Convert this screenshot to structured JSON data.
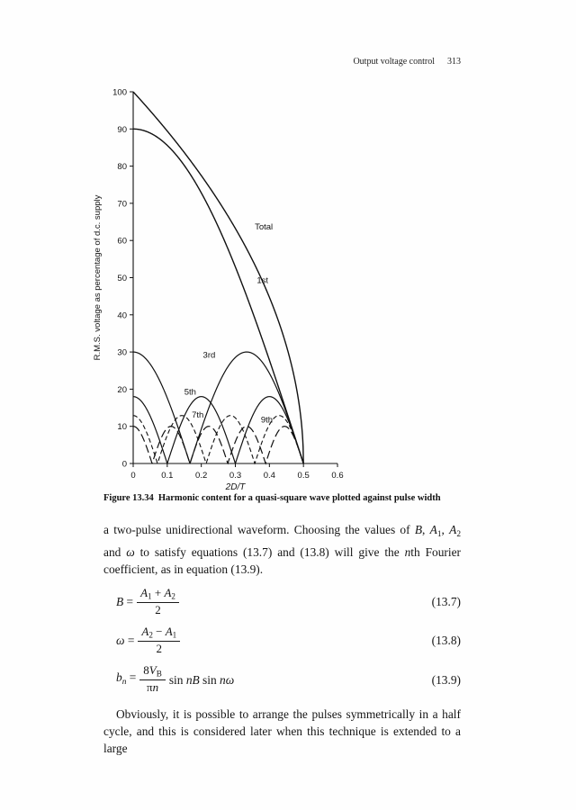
{
  "header": {
    "running_head": "Output voltage control",
    "page_number": "313"
  },
  "figure": {
    "caption_label": "Figure 13.34",
    "caption_text": "Harmonic content for a quasi-square wave plotted against pulse width"
  },
  "chart_data": {
    "type": "line",
    "title": "",
    "xlabel": "2D/T",
    "ylabel": "R.M.S. voltage as percentage of d.c. supply",
    "xlim": [
      0,
      0.6
    ],
    "ylim": [
      0,
      100
    ],
    "x_ticks": [
      "0",
      "0.1",
      "0.2",
      "0.3",
      "0.4",
      "0.5",
      "0.6"
    ],
    "y_ticks": [
      "0",
      "10",
      "20",
      "30",
      "40",
      "50",
      "60",
      "70",
      "80",
      "90",
      "100"
    ],
    "x_domain_end": 0.5,
    "grid": false,
    "legend_position": "inline-labels",
    "series": [
      {
        "name": "Total",
        "curve": "sqrt",
        "amplitude": 100,
        "dash": "",
        "width": 1.4,
        "label": "Total",
        "label_x": 0.357,
        "label_y": 63,
        "key_points": [
          [
            0,
            100
          ],
          [
            0.1,
            89.4
          ],
          [
            0.2,
            77.5
          ],
          [
            0.3,
            63.2
          ],
          [
            0.4,
            44.7
          ],
          [
            0.5,
            0
          ]
        ]
      },
      {
        "name": "1st",
        "curve": "cos",
        "harmonic": 1,
        "amplitude": 90,
        "dash": "",
        "width": 1.4,
        "label": "1st",
        "label_x": 0.363,
        "label_y": 48.5,
        "key_points": [
          [
            0,
            90
          ],
          [
            0.1,
            85.6
          ],
          [
            0.2,
            72.8
          ],
          [
            0.3,
            52.9
          ],
          [
            0.4,
            27.8
          ],
          [
            0.5,
            0
          ]
        ]
      },
      {
        "name": "3rd",
        "curve": "cos",
        "harmonic": 3,
        "amplitude": 30,
        "dash": "",
        "width": 1.2,
        "label": "3rd",
        "label_x": 0.205,
        "label_y": 28.5,
        "key_points": [
          [
            0,
            30
          ],
          [
            0.167,
            0
          ],
          [
            0.333,
            30
          ],
          [
            0.5,
            0
          ]
        ]
      },
      {
        "name": "5th",
        "curve": "cos",
        "harmonic": 5,
        "amplitude": 18,
        "dash": "",
        "width": 1.2,
        "label": "5th",
        "label_x": 0.15,
        "label_y": 18.5,
        "key_points": [
          [
            0,
            18
          ],
          [
            0.1,
            0
          ],
          [
            0.2,
            18
          ],
          [
            0.3,
            0
          ],
          [
            0.4,
            18
          ],
          [
            0.5,
            0
          ]
        ]
      },
      {
        "name": "7th",
        "curve": "cos",
        "harmonic": 7,
        "amplitude": 12.9,
        "dash": "5,3",
        "width": 1.1,
        "label": "7th",
        "label_x": 0.172,
        "label_y": 12.3,
        "key_points": [
          [
            0,
            12.9
          ],
          [
            0.071,
            0
          ],
          [
            0.143,
            12.9
          ],
          [
            0.214,
            0
          ],
          [
            0.286,
            12.9
          ],
          [
            0.357,
            0
          ],
          [
            0.429,
            12.9
          ],
          [
            0.5,
            0
          ]
        ]
      },
      {
        "name": "9th",
        "curve": "cos",
        "harmonic": 9,
        "amplitude": 10,
        "dash": "9,4",
        "width": 1.2,
        "label": "9th",
        "label_x": 0.375,
        "label_y": 11,
        "key_points": [
          [
            0,
            10
          ],
          [
            0.056,
            0
          ],
          [
            0.111,
            10
          ],
          [
            0.167,
            0
          ],
          [
            0.222,
            10
          ],
          [
            0.278,
            0
          ],
          [
            0.333,
            10
          ],
          [
            0.389,
            0
          ],
          [
            0.444,
            10
          ],
          [
            0.5,
            0
          ]
        ]
      }
    ],
    "line_color": "#111111"
  },
  "body": {
    "paragraph1": [
      {
        "t": "a two-pulse unidirectional waveform. Choosing the values of "
      },
      {
        "t": "B",
        "i": true
      },
      {
        "t": ", "
      },
      {
        "t": "A",
        "i": true
      },
      {
        "t": "1",
        "sub": true
      },
      {
        "t": ", "
      },
      {
        "t": "A",
        "i": true
      },
      {
        "t": "2",
        "sub": true
      },
      {
        "t": " and "
      },
      {
        "t": "ω",
        "i": true
      },
      {
        "t": " to satisfy equations (13.7) and (13.8) will give the "
      },
      {
        "t": "n",
        "i": true
      },
      {
        "t": "th Fourier coefficient, as in equation (13.9)."
      }
    ],
    "equations": [
      {
        "lhs": [
          {
            "t": "B",
            "i": true
          },
          {
            "t": " = "
          }
        ],
        "num": [
          {
            "t": "A",
            "i": true
          },
          {
            "t": "1",
            "sub": true
          },
          {
            "t": " + "
          },
          {
            "t": "A",
            "i": true
          },
          {
            "t": "2",
            "sub": true
          }
        ],
        "den": [
          {
            "t": "2"
          }
        ],
        "rest": [],
        "number": "(13.7)"
      },
      {
        "lhs": [
          {
            "t": "ω",
            "i": true
          },
          {
            "t": " = "
          }
        ],
        "num": [
          {
            "t": "A",
            "i": true
          },
          {
            "t": "2",
            "sub": true
          },
          {
            "t": " − "
          },
          {
            "t": "A",
            "i": true
          },
          {
            "t": "1",
            "sub": true
          }
        ],
        "den": [
          {
            "t": "2"
          }
        ],
        "rest": [],
        "number": "(13.8)"
      },
      {
        "lhs": [
          {
            "t": "b",
            "i": true
          },
          {
            "t": "n",
            "i": true,
            "sub": true
          },
          {
            "t": " = "
          }
        ],
        "num": [
          {
            "t": "8"
          },
          {
            "t": "V",
            "i": true
          },
          {
            "t": "B",
            "sub": true
          }
        ],
        "den": [
          {
            "t": "π"
          },
          {
            "t": "n",
            "i": true
          }
        ],
        "rest": [
          {
            "t": " sin "
          },
          {
            "t": "nB",
            "i": true
          },
          {
            "t": " sin "
          },
          {
            "t": "n",
            "i": true
          },
          {
            "t": "ω",
            "i": true
          }
        ],
        "number": "(13.9)"
      }
    ],
    "paragraph2": [
      {
        "t": "Obviously, it is possible to arrange the pulses symmetrically in a half cycle, and this is considered later when this technique is extended to a large"
      }
    ]
  }
}
